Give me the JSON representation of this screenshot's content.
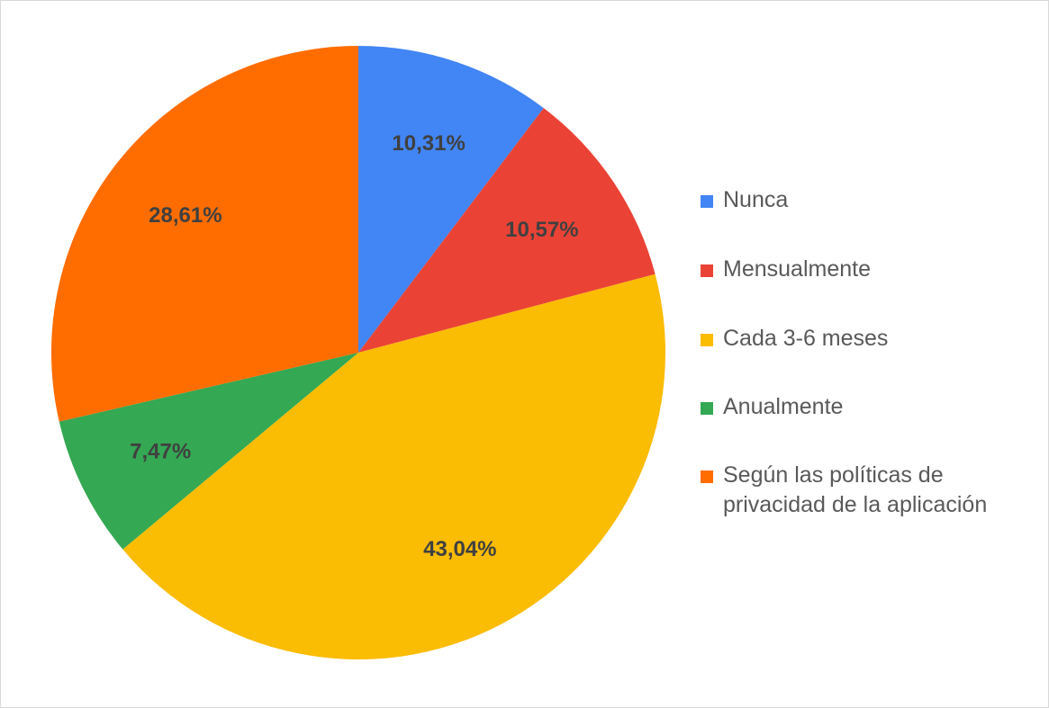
{
  "chart_data": {
    "type": "pie",
    "categories": [
      "Nunca",
      "Mensualmente",
      "Cada 3-6 meses",
      "Anualmente",
      "Según las políticas de privacidad de la aplicación"
    ],
    "values": [
      10.31,
      10.57,
      43.04,
      7.47,
      28.61
    ],
    "data_labels": [
      "10,31%",
      "10,57%",
      "43,04%",
      "7,47%",
      "28,61%"
    ],
    "colors": [
      "#4285f4",
      "#ea4335",
      "#fbbc04",
      "#34a853",
      "#ff6d01"
    ],
    "start_angle_deg": 0,
    "direction": "clockwise",
    "legend_position": "right"
  },
  "legend": {
    "items": [
      {
        "label": "Nunca",
        "color": "#4285f4"
      },
      {
        "label": "Mensualmente",
        "color": "#ea4335"
      },
      {
        "label": "Cada 3-6 meses",
        "color": "#fbbc04"
      },
      {
        "label": "Anualmente",
        "color": "#34a853"
      },
      {
        "label": "Según las políticas de privacidad de la aplicación",
        "color": "#ff6d01"
      }
    ]
  }
}
